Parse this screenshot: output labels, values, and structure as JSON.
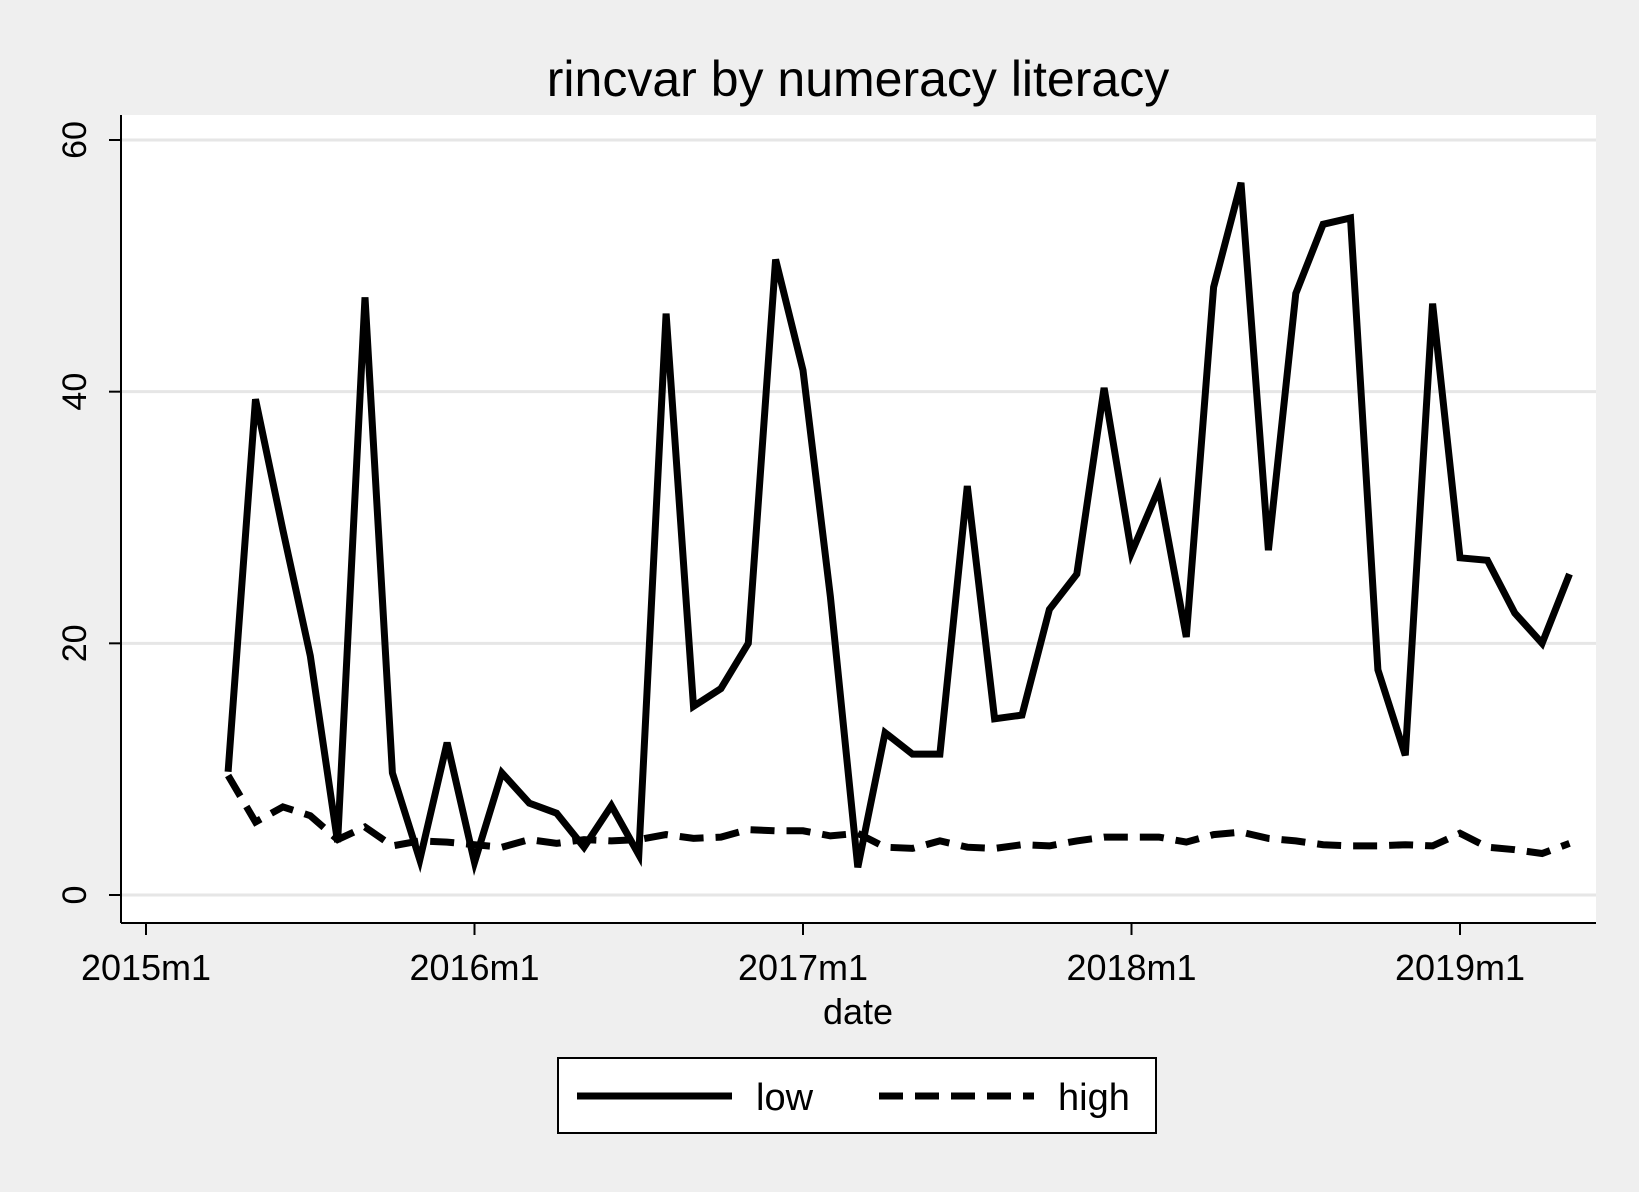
{
  "chart_data": {
    "type": "line",
    "title": "rincvar by numeracy literacy",
    "xlabel": "date",
    "ylabel": "",
    "x_start": "2015m4",
    "x_end": "2019m5",
    "xticks": [
      "2015m1",
      "2016m1",
      "2017m1",
      "2018m1",
      "2019m1"
    ],
    "yticks": [
      0,
      20,
      40,
      60
    ],
    "ylim": [
      -2,
      62
    ],
    "grid": true,
    "legend": {
      "placement": "bottom",
      "labels": [
        "low",
        "high"
      ]
    },
    "series": [
      {
        "name": "low",
        "style": "solid",
        "values": [
          9.8,
          39.4,
          29,
          19,
          4.2,
          47.5,
          9.7,
          2.8,
          12.1,
          2.6,
          9.7,
          7.3,
          6.5,
          3.8,
          7.1,
          3.2,
          46.2,
          15,
          16.4,
          20,
          50.5,
          41.7,
          23.7,
          2.2,
          12.9,
          11.2,
          11.2,
          32.5,
          14,
          14.3,
          22.7,
          25.5,
          40.3,
          27.2,
          32.3,
          20.5,
          48.3,
          56.6,
          27.4,
          47.8,
          53.3,
          53.8,
          17.9,
          11.1,
          47,
          26.8,
          26.6,
          22.4,
          20,
          25.5
        ]
      },
      {
        "name": "high",
        "style": "dashed",
        "values": [
          9.5,
          5.8,
          7,
          6.3,
          4.4,
          5.4,
          3.9,
          4.3,
          4.2,
          4,
          3.8,
          4.4,
          4.1,
          4.4,
          4.3,
          4.4,
          4.8,
          4.5,
          4.6,
          5.2,
          5.1,
          5.1,
          4.7,
          4.9,
          3.8,
          3.7,
          4.3,
          3.8,
          3.7,
          4,
          3.9,
          4.3,
          4.6,
          4.6,
          4.6,
          4.2,
          4.8,
          5,
          4.5,
          4.3,
          4,
          3.9,
          3.9,
          4,
          3.9,
          4.9,
          3.8,
          3.6,
          3.3,
          4.1
        ]
      }
    ]
  }
}
